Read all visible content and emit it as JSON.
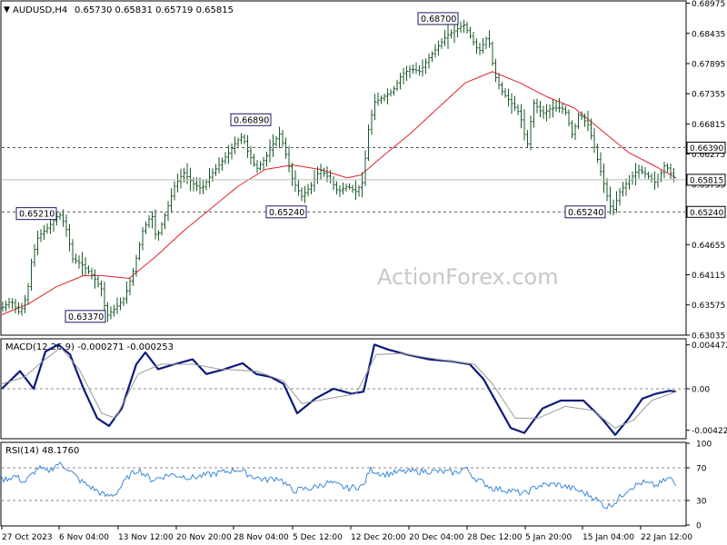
{
  "header": {
    "symbol": "AUDUSD,H4",
    "ohlc": "0.65730 0.65831 0.65719 0.65815"
  },
  "watermark": "ActionForex.com",
  "colors": {
    "bars": "#1a5a2a",
    "ma": "#e0202a",
    "macd": "#0b1a7a",
    "signal": "#999999",
    "rsi": "#3a8ad8",
    "dashed": "#555555",
    "last_price": "#bbbbbb",
    "label_border": "#1a1a6a"
  },
  "chart_data": [
    {
      "type": "ohlc",
      "name": "price",
      "ylim": [
        0.6305,
        0.69
      ],
      "y_ticks": [
        "0.68975",
        "0.68435",
        "0.67895",
        "0.67355",
        "0.66815",
        "0.66275",
        "0.65735",
        "0.65195",
        "0.64655",
        "0.64115",
        "0.63575",
        "0.63035"
      ],
      "x_ticks": [
        "27 Oct 2023",
        "6 Nov 04:00",
        "13 Nov 12:00",
        "20 Nov 20:00",
        "28 Nov 04:00",
        "5 Dec 12:00",
        "12 Dec 20:00",
        "20 Dec 04:00",
        "28 Dec 12:00",
        "5 Jan 20:00",
        "15 Jan 04:00",
        "22 Jan 12:00"
      ],
      "price_path": [
        [
          0,
          0.6352
        ],
        [
          10,
          0.6365
        ],
        [
          20,
          0.6342
        ],
        [
          28,
          0.6378
        ],
        [
          33,
          0.644
        ],
        [
          40,
          0.648
        ],
        [
          50,
          0.6495
        ],
        [
          58,
          0.651
        ],
        [
          63,
          0.6521
        ],
        [
          70,
          0.65
        ],
        [
          78,
          0.644
        ],
        [
          88,
          0.643
        ],
        [
          100,
          0.641
        ],
        [
          110,
          0.6385
        ],
        [
          115,
          0.6337
        ],
        [
          125,
          0.6352
        ],
        [
          135,
          0.637
        ],
        [
          145,
          0.642
        ],
        [
          155,
          0.649
        ],
        [
          165,
          0.652
        ],
        [
          170,
          0.6475
        ],
        [
          180,
          0.652
        ],
        [
          190,
          0.657
        ],
        [
          200,
          0.6595
        ],
        [
          210,
          0.6575
        ],
        [
          220,
          0.6565
        ],
        [
          230,
          0.659
        ],
        [
          240,
          0.661
        ],
        [
          250,
          0.663
        ],
        [
          258,
          0.665
        ],
        [
          265,
          0.666
        ],
        [
          270,
          0.6635
        ],
        [
          280,
          0.66
        ],
        [
          290,
          0.662
        ],
        [
          300,
          0.665
        ],
        [
          306,
          0.6665
        ],
        [
          312,
          0.663
        ],
        [
          320,
          0.658
        ],
        [
          330,
          0.6552
        ],
        [
          340,
          0.657
        ],
        [
          350,
          0.66
        ],
        [
          360,
          0.6585
        ],
        [
          370,
          0.656
        ],
        [
          380,
          0.657
        ],
        [
          390,
          0.656
        ],
        [
          398,
          0.658
        ],
        [
          402,
          0.666
        ],
        [
          410,
          0.672
        ],
        [
          420,
          0.673
        ],
        [
          430,
          0.674
        ],
        [
          440,
          0.677
        ],
        [
          450,
          0.678
        ],
        [
          460,
          0.6775
        ],
        [
          470,
          0.68
        ],
        [
          480,
          0.682
        ],
        [
          490,
          0.684
        ],
        [
          500,
          0.685
        ],
        [
          508,
          0.686
        ],
        [
          515,
          0.684
        ],
        [
          525,
          0.681
        ],
        [
          535,
          0.684
        ],
        [
          542,
          0.677
        ],
        [
          550,
          0.674
        ],
        [
          560,
          0.672
        ],
        [
          570,
          0.67
        ],
        [
          578,
          0.664
        ],
        [
          585,
          0.672
        ],
        [
          595,
          0.67
        ],
        [
          605,
          0.671
        ],
        [
          615,
          0.671
        ],
        [
          620,
          0.6705
        ],
        [
          628,
          0.666
        ],
        [
          635,
          0.67
        ],
        [
          645,
          0.668
        ],
        [
          652,
          0.664
        ],
        [
          660,
          0.659
        ],
        [
          668,
          0.654
        ],
        [
          672,
          0.6524
        ],
        [
          680,
          0.656
        ],
        [
          690,
          0.658
        ],
        [
          700,
          0.66
        ],
        [
          710,
          0.659
        ],
        [
          720,
          0.6575
        ],
        [
          730,
          0.661
        ],
        [
          735,
          0.6595
        ],
        [
          742,
          0.6581
        ]
      ],
      "ma_path": [
        [
          0,
          0.634
        ],
        [
          30,
          0.636
        ],
        [
          60,
          0.639
        ],
        [
          90,
          0.641
        ],
        [
          110,
          0.641
        ],
        [
          140,
          0.6405
        ],
        [
          170,
          0.6445
        ],
        [
          200,
          0.649
        ],
        [
          230,
          0.653
        ],
        [
          260,
          0.657
        ],
        [
          290,
          0.66
        ],
        [
          320,
          0.6608
        ],
        [
          350,
          0.66
        ],
        [
          380,
          0.6585
        ],
        [
          395,
          0.659
        ],
        [
          420,
          0.6625
        ],
        [
          450,
          0.6665
        ],
        [
          480,
          0.671
        ],
        [
          510,
          0.6755
        ],
        [
          540,
          0.6775
        ],
        [
          570,
          0.6755
        ],
        [
          600,
          0.673
        ],
        [
          630,
          0.671
        ],
        [
          660,
          0.667
        ],
        [
          690,
          0.663
        ],
        [
          720,
          0.6605
        ],
        [
          742,
          0.6585
        ]
      ],
      "last_price": "0.65815",
      "levels": [
        {
          "label": "0.66390",
          "value": 0.6639,
          "style": "dashed"
        },
        {
          "label": "0.65240",
          "value": 0.6524,
          "style": "dashed"
        }
      ],
      "annotations": [
        {
          "label": "0.65210",
          "x": 38,
          "value": 0.6521
        },
        {
          "label": "0.63370",
          "x": 92,
          "value": 0.6337
        },
        {
          "label": "0.66890",
          "x": 274,
          "value": 0.6689
        },
        {
          "label": "0.65240",
          "x": 313,
          "value": 0.6524
        },
        {
          "label": "0.68700",
          "x": 480,
          "value": 0.687
        },
        {
          "label": "0.65240",
          "x": 642,
          "value": 0.6524
        }
      ]
    },
    {
      "type": "line",
      "name": "MACD(12,26,9) -0.000271 -0.000253",
      "ylim": [
        -0.005,
        0.005
      ],
      "y_ticks": [
        "0.004472",
        "0.00",
        "-0.004229"
      ],
      "series": [
        {
          "role": "macd",
          "points": [
            [
              0,
              0.0
            ],
            [
              20,
              0.0018
            ],
            [
              35,
              0.0
            ],
            [
              48,
              0.0038
            ],
            [
              62,
              0.0045
            ],
            [
              75,
              0.0035
            ],
            [
              90,
              0.0
            ],
            [
              105,
              -0.003
            ],
            [
              118,
              -0.0038
            ],
            [
              132,
              -0.002
            ],
            [
              148,
              0.0025
            ],
            [
              158,
              0.0037
            ],
            [
              172,
              0.002
            ],
            [
              190,
              0.0025
            ],
            [
              210,
              0.003
            ],
            [
              225,
              0.0015
            ],
            [
              245,
              0.002
            ],
            [
              265,
              0.0026
            ],
            [
              280,
              0.0015
            ],
            [
              296,
              0.0012
            ],
            [
              310,
              0.0005
            ],
            [
              325,
              -0.0025
            ],
            [
              345,
              -0.001
            ],
            [
              365,
              0.0
            ],
            [
              385,
              -0.0005
            ],
            [
              398,
              -0.0003
            ],
            [
              410,
              0.0045
            ],
            [
              425,
              0.004
            ],
            [
              445,
              0.0035
            ],
            [
              470,
              0.003
            ],
            [
              495,
              0.0028
            ],
            [
              515,
              0.0025
            ],
            [
              530,
              0.001
            ],
            [
              545,
              -0.0015
            ],
            [
              560,
              -0.004
            ],
            [
              575,
              -0.0045
            ],
            [
              595,
              -0.002
            ],
            [
              615,
              -0.0012
            ],
            [
              640,
              -0.0012
            ],
            [
              660,
              -0.003
            ],
            [
              675,
              -0.0047
            ],
            [
              690,
              -0.003
            ],
            [
              705,
              -0.001
            ],
            [
              720,
              -0.0005
            ],
            [
              735,
              -0.0002
            ],
            [
              742,
              -0.0003
            ]
          ]
        },
        {
          "role": "signal",
          "points": [
            [
              0,
              0.0005
            ],
            [
              25,
              0.0012
            ],
            [
              45,
              0.0028
            ],
            [
              65,
              0.0042
            ],
            [
              85,
              0.002
            ],
            [
              110,
              -0.0025
            ],
            [
              125,
              -0.003
            ],
            [
              150,
              0.0015
            ],
            [
              175,
              0.0025
            ],
            [
              210,
              0.0025
            ],
            [
              240,
              0.002
            ],
            [
              280,
              0.0018
            ],
            [
              310,
              0.0008
            ],
            [
              330,
              -0.0015
            ],
            [
              360,
              -0.001
            ],
            [
              390,
              -0.0005
            ],
            [
              412,
              0.0035
            ],
            [
              440,
              0.0036
            ],
            [
              480,
              0.003
            ],
            [
              520,
              0.0025
            ],
            [
              540,
              0.0005
            ],
            [
              565,
              -0.003
            ],
            [
              590,
              -0.003
            ],
            [
              620,
              -0.0018
            ],
            [
              650,
              -0.0022
            ],
            [
              675,
              -0.004
            ],
            [
              695,
              -0.0032
            ],
            [
              715,
              -0.0012
            ],
            [
              742,
              -0.0003
            ]
          ]
        }
      ]
    },
    {
      "type": "line",
      "name": "RSI(14) 48.1760",
      "ylim": [
        0,
        100
      ],
      "y_ticks": [
        "100",
        "70",
        "30",
        "0"
      ],
      "levels": [
        70,
        30
      ],
      "series": [
        {
          "role": "rsi",
          "points": [
            [
              0,
              55
            ],
            [
              15,
              60
            ],
            [
              25,
              52
            ],
            [
              40,
              70
            ],
            [
              50,
              65
            ],
            [
              62,
              75
            ],
            [
              72,
              70
            ],
            [
              85,
              55
            ],
            [
              100,
              45
            ],
            [
              115,
              35
            ],
            [
              125,
              38
            ],
            [
              140,
              60
            ],
            [
              150,
              68
            ],
            [
              165,
              55
            ],
            [
              185,
              62
            ],
            [
              210,
              58
            ],
            [
              235,
              63
            ],
            [
              260,
              68
            ],
            [
              275,
              60
            ],
            [
              290,
              55
            ],
            [
              305,
              58
            ],
            [
              320,
              42
            ],
            [
              340,
              45
            ],
            [
              360,
              52
            ],
            [
              380,
              45
            ],
            [
              398,
              48
            ],
            [
              405,
              68
            ],
            [
              420,
              62
            ],
            [
              440,
              65
            ],
            [
              470,
              66
            ],
            [
              500,
              64
            ],
            [
              510,
              70
            ],
            [
              520,
              58
            ],
            [
              540,
              45
            ],
            [
              560,
              42
            ],
            [
              575,
              38
            ],
            [
              590,
              48
            ],
            [
              610,
              50
            ],
            [
              630,
              44
            ],
            [
              650,
              35
            ],
            [
              665,
              22
            ],
            [
              675,
              28
            ],
            [
              690,
              45
            ],
            [
              705,
              52
            ],
            [
              720,
              48
            ],
            [
              735,
              58
            ],
            [
              742,
              48
            ]
          ]
        }
      ]
    }
  ]
}
